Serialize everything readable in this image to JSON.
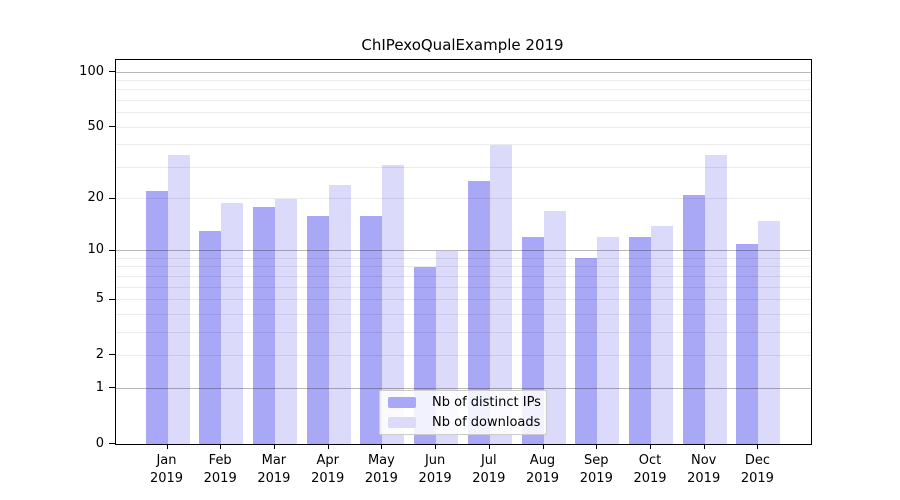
{
  "title": "ChIPexoQualExample 2019",
  "colors": {
    "distinct_ips": "#a9a8f6",
    "downloads": "#dbdafb",
    "spine": "#000000",
    "major_grid": "#b8b8b8",
    "minor_grid": "#ebebeb"
  },
  "legend": {
    "items": [
      {
        "label": "Nb of distinct IPs",
        "color_key": "distinct_ips"
      },
      {
        "label": "Nb of downloads",
        "color_key": "downloads"
      }
    ]
  },
  "y_axis": {
    "tick_labels": [
      "100",
      "50",
      "20",
      "10",
      "5",
      "2",
      "1",
      "0"
    ],
    "tick_values": [
      100,
      50,
      20,
      10,
      5,
      2,
      1,
      0
    ],
    "major_grid_values": [
      1,
      10,
      100
    ],
    "minor_grid_values": [
      2,
      3,
      4,
      5,
      6,
      7,
      8,
      9,
      20,
      30,
      40,
      50,
      60,
      70,
      80,
      90
    ]
  },
  "x_axis": {
    "months": [
      "Jan",
      "Feb",
      "Mar",
      "Apr",
      "May",
      "Jun",
      "Jul",
      "Aug",
      "Sep",
      "Oct",
      "Nov",
      "Dec"
    ],
    "year": "2019"
  },
  "chart_data": {
    "type": "bar",
    "categories": [
      "Jan 2019",
      "Feb 2019",
      "Mar 2019",
      "Apr 2019",
      "May 2019",
      "Jun 2019",
      "Jul 2019",
      "Aug 2019",
      "Sep 2019",
      "Oct 2019",
      "Nov 2019",
      "Dec 2019"
    ],
    "series": [
      {
        "name": "Nb of distinct IPs",
        "values": [
          22,
          13,
          18,
          16,
          16,
          8,
          25,
          12,
          9,
          12,
          21,
          11
        ]
      },
      {
        "name": "Nb of downloads",
        "values": [
          35,
          19,
          20,
          24,
          31,
          10,
          40,
          17,
          12,
          14,
          35,
          15
        ]
      }
    ],
    "title": "ChIPexoQualExample 2019",
    "xlabel": "",
    "ylabel": "",
    "yscale": "log1p",
    "ylim": [
      0,
      118
    ],
    "yticks": [
      0,
      1,
      2,
      5,
      10,
      20,
      50,
      100
    ],
    "grid": "both (major darker, minor lighter), drawn over bars",
    "legend_position": "lower center inside plot"
  }
}
